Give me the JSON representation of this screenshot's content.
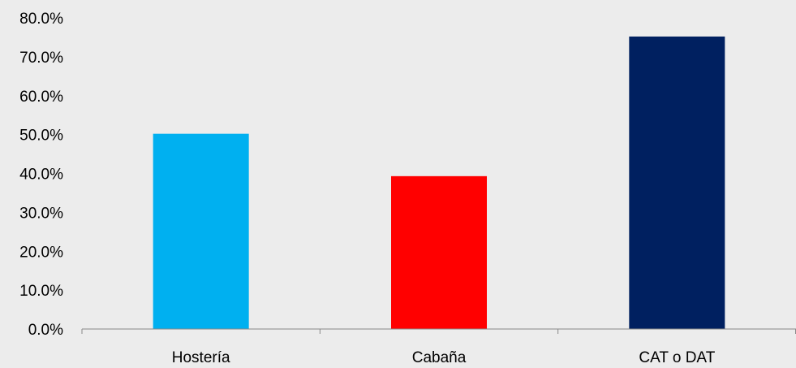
{
  "chart_data": {
    "type": "bar",
    "categories": [
      "Hostería",
      "Cabaña",
      "CAT o DAT"
    ],
    "values": [
      50.2,
      39.3,
      75.2
    ],
    "colors": [
      "#00b0f0",
      "#ff0000",
      "#002060"
    ],
    "ylim": [
      0,
      80
    ],
    "yticks": [
      "0.0%",
      "10.0%",
      "20.0%",
      "30.0%",
      "40.0%",
      "50.0%",
      "60.0%",
      "70.0%",
      "80.0%"
    ],
    "title": "",
    "xlabel": "",
    "ylabel": "",
    "grid": false,
    "legend": "none",
    "background": "#ececec",
    "axis_color": "#888888"
  }
}
